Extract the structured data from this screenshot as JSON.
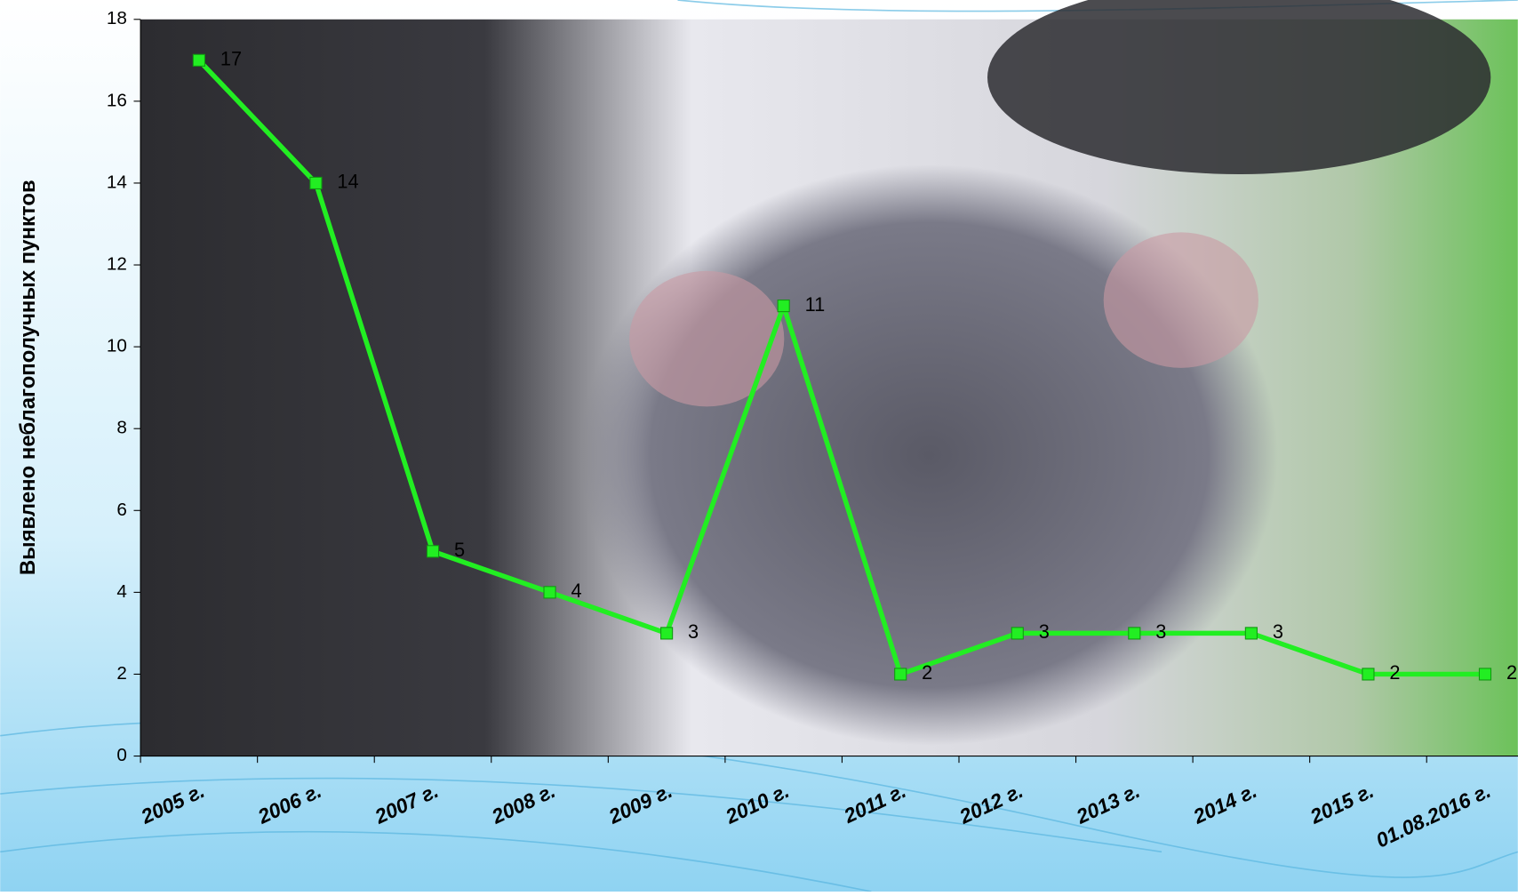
{
  "chart_data": {
    "type": "line",
    "y_label": "Выявлено неблагополучных пунктов",
    "categories": [
      "2005 г.",
      "2006 г.",
      "2007 г.",
      "2008 г.",
      "2009 г.",
      "2010 г.",
      "2011 г.",
      "2012 г.",
      "2013 г.",
      "2014 г.",
      "2015 г.",
      "01.08.2016 г."
    ],
    "values": [
      17,
      14,
      5,
      4,
      3,
      11,
      2,
      3,
      3,
      3,
      2,
      2
    ],
    "color": "#22ee22",
    "ylim": [
      0,
      18
    ],
    "yticks": [
      0,
      2,
      4,
      6,
      8,
      10,
      12,
      14,
      16,
      18
    ]
  }
}
